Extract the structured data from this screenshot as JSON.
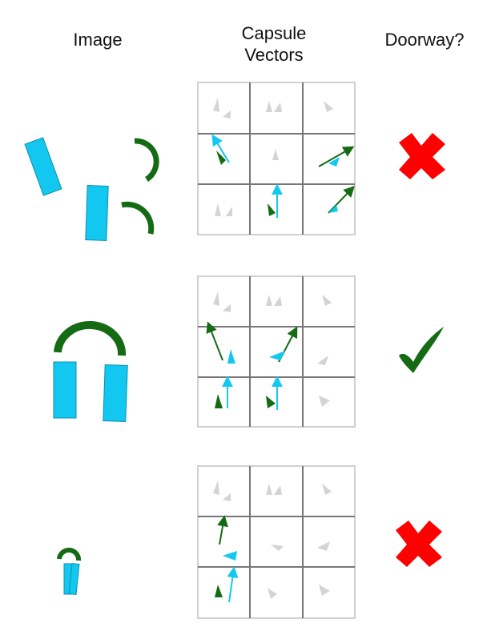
{
  "headers": {
    "image": "Image",
    "capsule_line1": "Capsule",
    "capsule_line2": "Vectors",
    "doorway": "Doorway?"
  },
  "colors": {
    "cyan": "#12c8f0",
    "green": "#146b14",
    "red": "#ff0000",
    "grid_light": "#d0d0d0",
    "grid_dark": "#777777",
    "faint": "#c9c9c9"
  },
  "rows": [
    {
      "image_icon": "scattered-door-parts",
      "verdict_icon": "red-cross-icon",
      "is_doorway": false
    },
    {
      "image_icon": "assembled-doorway",
      "verdict_icon": "green-check-icon",
      "is_doorway": true
    },
    {
      "image_icon": "small-doorway",
      "verdict_icon": "red-cross-icon",
      "is_doorway": false
    }
  ]
}
